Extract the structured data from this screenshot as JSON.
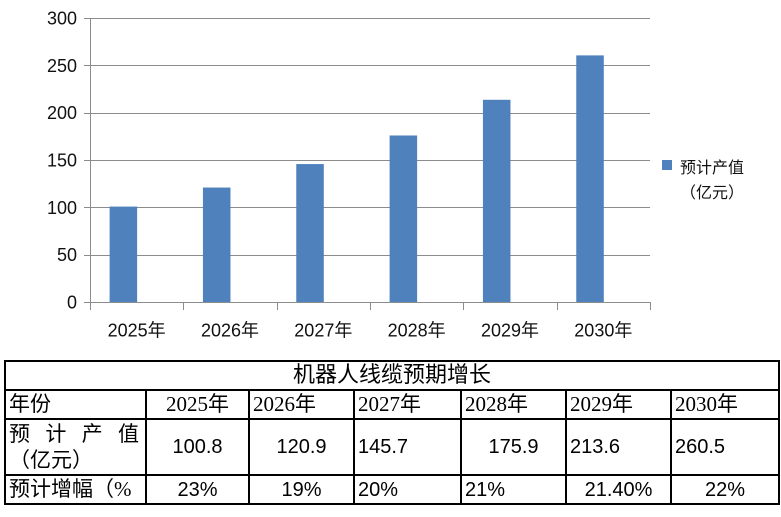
{
  "chart_data": {
    "type": "bar",
    "categories": [
      "2025年",
      "2026年",
      "2027年",
      "2028年",
      "2029年",
      "2030年"
    ],
    "series": [
      {
        "name": "预计产值（亿元）",
        "values": [
          100.8,
          120.9,
          145.7,
          175.9,
          213.6,
          260.5
        ],
        "color": "#4f81bd"
      }
    ],
    "yticks": [
      0,
      50,
      100,
      150,
      200,
      250,
      300
    ],
    "ylim": [
      0,
      300
    ],
    "grid": true,
    "legend": "right"
  },
  "table": {
    "title": "机器人线缆预期增长",
    "header": {
      "label": "年份",
      "years": [
        "2025年",
        "2026年",
        "2027年",
        "2028年",
        "2029年",
        "2030年"
      ]
    },
    "output_row": {
      "label_line1": "预 计 产 值",
      "label_line2": "（亿元）",
      "values": [
        "100.8",
        "120.9",
        "145.7",
        "175.9",
        "213.6",
        "260.5"
      ]
    },
    "growth_row": {
      "label": "预计增幅（%",
      "values": [
        "23%",
        "19%",
        "20%",
        "21%",
        "21.40%",
        "22%"
      ]
    }
  }
}
